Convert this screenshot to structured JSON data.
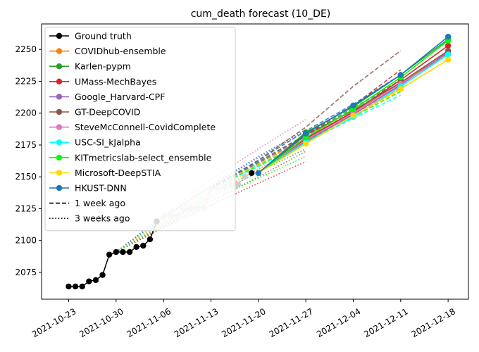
{
  "chart_data": {
    "type": "line",
    "title": "cum_death forecast (10_DE)",
    "xlabel": "",
    "ylabel": "",
    "x_ticks": [
      "2021-10-23",
      "2021-10-30",
      "2021-11-06",
      "2021-11-13",
      "2021-11-20",
      "2021-11-27",
      "2021-12-04",
      "2021-12-11",
      "2021-12-18"
    ],
    "y_ticks": [
      2075,
      2100,
      2125,
      2150,
      2175,
      2200,
      2225,
      2250
    ],
    "x_range": [
      "2021-10-19",
      "2021-12-21"
    ],
    "ylim": [
      2054,
      2270
    ],
    "grid": false,
    "legend_position": "top-left",
    "legend": [
      {
        "label": "Ground truth",
        "color": "#000000",
        "style": "solid-marker"
      },
      {
        "label": "COVIDhub-ensemble",
        "color": "#ff7f0e",
        "style": "solid-marker"
      },
      {
        "label": "Karlen-pypm",
        "color": "#2ca02c",
        "style": "solid-marker"
      },
      {
        "label": "UMass-MechBayes",
        "color": "#d62728",
        "style": "solid-marker"
      },
      {
        "label": "Google_Harvard-CPF",
        "color": "#9467bd",
        "style": "solid-marker"
      },
      {
        "label": "GT-DeepCOVID",
        "color": "#8c564b",
        "style": "solid-marker"
      },
      {
        "label": "SteveMcConnell-CovidComplete",
        "color": "#e377c2",
        "style": "solid-marker"
      },
      {
        "label": "USC-SI_kJalpha",
        "color": "#00ffff",
        "style": "solid-marker"
      },
      {
        "label": "KITmetricslab-select_ensemble",
        "color": "#00ff00",
        "style": "solid-marker"
      },
      {
        "label": "Microsoft-DeepSTIA",
        "color": "#ffd700",
        "style": "solid-marker"
      },
      {
        "label": "HKUST-DNN",
        "color": "#1f77b4",
        "style": "solid-marker"
      },
      {
        "label": "1 week ago",
        "color": "#000000",
        "style": "dashed"
      },
      {
        "label": "3 weeks ago",
        "color": "#000000",
        "style": "dotted"
      }
    ],
    "ground_truth": {
      "x": [
        "2021-10-23",
        "2021-10-24",
        "2021-10-25",
        "2021-10-26",
        "2021-10-27",
        "2021-10-28",
        "2021-10-29",
        "2021-10-30",
        "2021-10-31",
        "2021-11-01",
        "2021-11-02",
        "2021-11-03",
        "2021-11-04",
        "2021-11-05",
        "2021-11-06",
        "2021-11-07",
        "2021-11-08",
        "2021-11-09",
        "2021-11-10",
        "2021-11-11",
        "2021-11-12",
        "2021-11-13",
        "2021-11-14",
        "2021-11-15",
        "2021-11-16",
        "2021-11-17",
        "2021-11-18",
        "2021-11-19"
      ],
      "y": [
        2064,
        2064,
        2064,
        2068,
        2069,
        2073,
        2089,
        2091,
        2091,
        2091,
        2095,
        2096,
        2101,
        2115,
        2119,
        2119,
        2119,
        2124,
        2125,
        2125,
        2125,
        2141,
        2141,
        2142,
        2143,
        2144,
        2150,
        2153
      ],
      "highlighted_until": "2021-11-05"
    },
    "forecasts_current": [
      {
        "name": "COVIDhub-ensemble",
        "color": "#ff7f0e",
        "x": [
          "2021-11-20",
          "2021-11-27",
          "2021-12-04",
          "2021-12-11",
          "2021-12-18"
        ],
        "y": [
          2153,
          2180,
          2201,
          2224,
          2247
        ]
      },
      {
        "name": "Karlen-pypm",
        "color": "#2ca02c",
        "x": [
          "2021-11-20",
          "2021-11-27",
          "2021-12-04",
          "2021-12-11",
          "2021-12-18"
        ],
        "y": [
          2153,
          2185,
          2205,
          2230,
          2258
        ]
      },
      {
        "name": "UMass-MechBayes",
        "color": "#d62728",
        "x": [
          "2021-11-20",
          "2021-11-27",
          "2021-12-04",
          "2021-12-11",
          "2021-12-18"
        ],
        "y": [
          2153,
          2180,
          2201,
          2226,
          2253
        ]
      },
      {
        "name": "Google_Harvard-CPF",
        "color": "#9467bd",
        "x": [
          "2021-11-20",
          "2021-11-27",
          "2021-12-04",
          "2021-12-11",
          "2021-12-18"
        ],
        "y": [
          2153,
          2178,
          2199,
          2222,
          2248
        ]
      },
      {
        "name": "GT-DeepCOVID",
        "color": "#8c564b",
        "x": [
          "2021-11-20",
          "2021-11-27",
          "2021-12-04",
          "2021-12-11",
          "2021-12-18"
        ],
        "y": [
          2153,
          2183,
          2202,
          2224,
          2249
        ]
      },
      {
        "name": "SteveMcConnell-CovidComplete",
        "color": "#e377c2",
        "x": [
          "2021-11-20",
          "2021-11-27",
          "2021-12-04",
          "2021-12-11",
          "2021-12-18"
        ],
        "y": [
          2153,
          2179,
          2200,
          2223,
          2246
        ]
      },
      {
        "name": "USC-SI_kJalpha",
        "color": "#00ffff",
        "x": [
          "2021-11-20",
          "2021-11-27",
          "2021-12-04",
          "2021-12-11",
          "2021-12-18"
        ],
        "y": [
          2153,
          2177,
          2197,
          2221,
          2246
        ]
      },
      {
        "name": "KITmetricslab-select_ensemble",
        "color": "#00ff00",
        "x": [
          "2021-11-20",
          "2021-11-27",
          "2021-12-04",
          "2021-12-11",
          "2021-12-18"
        ],
        "y": [
          2153,
          2181,
          2203,
          2228,
          2257
        ]
      },
      {
        "name": "Microsoft-DeepSTIA",
        "color": "#ffd700",
        "x": [
          "2021-11-20",
          "2021-11-27",
          "2021-12-04",
          "2021-12-11",
          "2021-12-18"
        ],
        "y": [
          2153,
          2176,
          2198,
          2219,
          2242
        ]
      },
      {
        "name": "HKUST-DNN",
        "color": "#1f77b4",
        "x": [
          "2021-11-20",
          "2021-11-27",
          "2021-12-04",
          "2021-12-11",
          "2021-12-18"
        ],
        "y": [
          2153,
          2184,
          2206,
          2230,
          2260
        ]
      }
    ],
    "forecasts_1week_ago": [
      {
        "name": "COVIDhub-ensemble",
        "color": "#ff7f0e",
        "x": [
          "2021-11-13",
          "2021-11-20",
          "2021-11-27",
          "2021-12-04",
          "2021-12-11"
        ],
        "y": [
          2141,
          2160,
          2181,
          2201,
          2222
        ]
      },
      {
        "name": "Karlen-pypm",
        "color": "#2ca02c",
        "x": [
          "2021-11-13",
          "2021-11-20",
          "2021-11-27",
          "2021-12-04",
          "2021-12-11"
        ],
        "y": [
          2141,
          2162,
          2183,
          2204,
          2226
        ]
      },
      {
        "name": "UMass-MechBayes",
        "color": "#d62728",
        "x": [
          "2021-11-13",
          "2021-11-20",
          "2021-11-27",
          "2021-12-04",
          "2021-12-11"
        ],
        "y": [
          2141,
          2161,
          2183,
          2206,
          2234
        ]
      },
      {
        "name": "Google_Harvard-CPF",
        "color": "#9467bd",
        "x": [
          "2021-11-13",
          "2021-11-20",
          "2021-11-27",
          "2021-12-04",
          "2021-12-11"
        ],
        "y": [
          2141,
          2161,
          2182,
          2203,
          2226
        ]
      },
      {
        "name": "GT-DeepCOVID",
        "color": "#8c564b",
        "x": [
          "2021-11-13",
          "2021-11-20",
          "2021-11-27",
          "2021-12-04",
          "2021-12-11"
        ],
        "y": [
          2141,
          2163,
          2189,
          2221,
          2249
        ]
      },
      {
        "name": "SteveMcConnell-CovidComplete",
        "color": "#e377c2",
        "x": [
          "2021-11-13",
          "2021-11-20",
          "2021-11-27",
          "2021-12-04",
          "2021-12-11"
        ],
        "y": [
          2141,
          2160,
          2180,
          2199,
          2220
        ]
      },
      {
        "name": "USC-SI_kJalpha",
        "color": "#00ffff",
        "x": [
          "2021-11-13",
          "2021-11-20",
          "2021-11-27",
          "2021-12-04",
          "2021-12-11"
        ],
        "y": [
          2141,
          2158,
          2177,
          2196,
          2214
        ]
      },
      {
        "name": "KITmetricslab-select_ensemble",
        "color": "#00ff00",
        "x": [
          "2021-11-13",
          "2021-11-20",
          "2021-11-27",
          "2021-12-04",
          "2021-12-11"
        ],
        "y": [
          2141,
          2159,
          2178,
          2197,
          2217
        ]
      },
      {
        "name": "Microsoft-DeepSTIA",
        "color": "#ffd700",
        "x": [
          "2021-11-13",
          "2021-11-20",
          "2021-11-27",
          "2021-12-04",
          "2021-12-11"
        ],
        "y": [
          2141,
          2160,
          2179,
          2198,
          2218
        ]
      },
      {
        "name": "HKUST-DNN",
        "color": "#1f77b4",
        "x": [
          "2021-11-13",
          "2021-11-20",
          "2021-11-27",
          "2021-12-04",
          "2021-12-11"
        ],
        "y": [
          2141,
          2163,
          2186,
          2207,
          2230
        ]
      }
    ],
    "forecasts_3weeks_ago": [
      {
        "name": "COVIDhub-ensemble",
        "color": "#ff7f0e",
        "x": [
          "2021-10-30",
          "2021-11-06",
          "2021-11-13",
          "2021-11-20",
          "2021-11-27"
        ],
        "y": [
          2091,
          2115,
          2136,
          2156,
          2176
        ]
      },
      {
        "name": "Karlen-pypm",
        "color": "#2ca02c",
        "x": [
          "2021-10-30",
          "2021-11-06",
          "2021-11-13",
          "2021-11-20",
          "2021-11-27"
        ],
        "y": [
          2091,
          2113,
          2134,
          2154,
          2172
        ]
      },
      {
        "name": "UMass-MechBayes",
        "color": "#d62728",
        "x": [
          "2021-10-30",
          "2021-11-06",
          "2021-11-13",
          "2021-11-20",
          "2021-11-27"
        ],
        "y": [
          2091,
          2110,
          2128,
          2145,
          2162
        ]
      },
      {
        "name": "Google_Harvard-CPF",
        "color": "#9467bd",
        "x": [
          "2021-10-30",
          "2021-11-06",
          "2021-11-13",
          "2021-11-20",
          "2021-11-27"
        ],
        "y": [
          2091,
          2118,
          2142,
          2165,
          2186
        ]
      },
      {
        "name": "GT-DeepCOVID",
        "color": "#8c564b",
        "x": [
          "2021-10-30",
          "2021-11-06",
          "2021-11-13",
          "2021-11-20",
          "2021-11-27"
        ],
        "y": [
          2091,
          2111,
          2131,
          2150,
          2170
        ]
      },
      {
        "name": "SteveMcConnell-CovidComplete",
        "color": "#e377c2",
        "x": [
          "2021-10-30",
          "2021-11-06",
          "2021-11-13",
          "2021-11-20",
          "2021-11-27"
        ],
        "y": [
          2091,
          2120,
          2148,
          2172,
          2195
        ]
      },
      {
        "name": "USC-SI_kJalpha",
        "color": "#00ffff",
        "x": [
          "2021-10-30",
          "2021-11-06",
          "2021-11-13",
          "2021-11-20",
          "2021-11-27"
        ],
        "y": [
          2091,
          2117,
          2139,
          2160,
          2180
        ]
      },
      {
        "name": "KITmetricslab-select_ensemble",
        "color": "#00ff00",
        "x": [
          "2021-10-30",
          "2021-11-06",
          "2021-11-13",
          "2021-11-20",
          "2021-11-27"
        ],
        "y": [
          2091,
          2112,
          2131,
          2149,
          2166
        ]
      },
      {
        "name": "Microsoft-DeepSTIA",
        "color": "#ffd700",
        "x": [
          "2021-10-30",
          "2021-11-06",
          "2021-11-13",
          "2021-11-20",
          "2021-11-27"
        ],
        "y": [
          2091,
          2116,
          2138,
          2158,
          2177
        ]
      },
      {
        "name": "HKUST-DNN",
        "color": "#1f77b4",
        "x": [
          "2021-10-30",
          "2021-11-06",
          "2021-11-13",
          "2021-11-20",
          "2021-11-27"
        ],
        "y": [
          2091,
          2119,
          2143,
          2166,
          2187
        ]
      }
    ]
  }
}
